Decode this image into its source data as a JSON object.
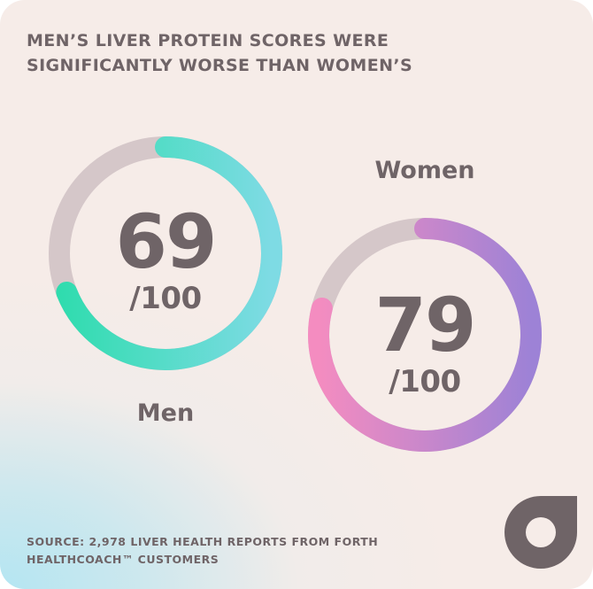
{
  "title_lines": [
    "MEN’S LIVER PROTEIN SCORES WERE",
    "SIGNIFICANTLY WORSE THAN WOMEN’S"
  ],
  "chart_data": {
    "type": "donut",
    "title": "MEN’S LIVER PROTEIN SCORES WERE SIGNIFICANTLY WORSE THAN WOMEN’S",
    "max": 100,
    "series": [
      {
        "name": "Men",
        "value": 69,
        "value_label": "69",
        "max_label": "/100",
        "colors": [
          "#2fdcae",
          "#7edbe4"
        ]
      },
      {
        "name": "Women",
        "value": 79,
        "value_label": "79",
        "max_label": "/100",
        "colors": [
          "#f48cc0",
          "#9d82d6"
        ]
      }
    ],
    "track_color": "#d5c7c9"
  },
  "source_lines": [
    "SOURCE: 2,978 LIVER HEALTH REPORTS FROM FORTH",
    "HEALTHCOACH™ CUSTOMERS"
  ],
  "logo": {
    "icon": "forth-logo-icon",
    "color": "#6f6467"
  }
}
